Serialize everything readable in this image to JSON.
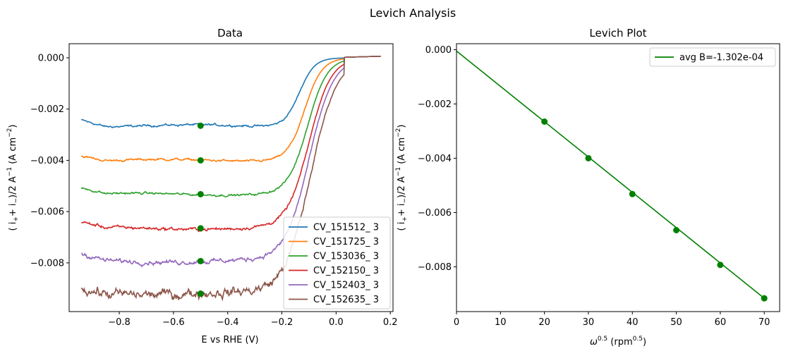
{
  "figure": {
    "suptitle": "Levich Analysis"
  },
  "chart_data": [
    {
      "type": "line",
      "title": "Data",
      "xlabel": "E vs RHE (V)",
      "ylabel_main": "( i",
      "ylabel_plus": "+",
      "ylabel_mid": "+ i",
      "ylabel_minus": "−",
      "ylabel_tail": ")/2 A",
      "ylabel_exp1": "−1",
      "ylabel_units": " (A cm",
      "ylabel_exp2": "−2",
      "ylabel_close": ")",
      "xlim": [
        -0.985,
        0.21
      ],
      "ylim": [
        -0.0099,
        0.00055
      ],
      "xticks": [
        -0.8,
        -0.6,
        -0.4,
        -0.2,
        0.0,
        0.2
      ],
      "xtick_labels": [
        "−0.8",
        "−0.6",
        "−0.4",
        "−0.2",
        "0.0",
        "0.2"
      ],
      "yticks": [
        0.0,
        -0.002,
        -0.004,
        -0.006,
        -0.008
      ],
      "ytick_labels": [
        "0.000",
        "−0.002",
        "−0.004",
        "−0.006",
        "−0.008"
      ],
      "legend_position": "lower-right",
      "curve_x_range": [
        -0.94,
        0.165
      ],
      "half_wave_potential": -0.105,
      "marker_x": -0.5,
      "series": [
        {
          "name": "CV_151512_ 3",
          "color": "#1f77b4",
          "plateau": -0.00265,
          "onset": -0.135,
          "noise": 2e-05
        },
        {
          "name": "CV_151725_ 3",
          "color": "#ff7f0e",
          "plateau": -0.004,
          "onset": -0.115,
          "noise": 2e-05
        },
        {
          "name": "CV_153036_ 3",
          "color": "#2ca02c",
          "plateau": -0.00532,
          "onset": -0.105,
          "noise": 2e-05
        },
        {
          "name": "CV_152150_ 3",
          "color": "#d62728",
          "plateau": -0.00665,
          "onset": -0.1,
          "noise": 3e-05
        },
        {
          "name": "CV_152403_ 3",
          "color": "#9467bd",
          "plateau": -0.00793,
          "onset": -0.1,
          "noise": 4e-05
        },
        {
          "name": "CV_152635_ 3",
          "color": "#8c564b",
          "plateau": -0.0092,
          "onset": -0.095,
          "noise": 9e-05
        }
      ],
      "markers": {
        "color": "#008000",
        "x": -0.5,
        "y": [
          -0.00265,
          -0.004,
          -0.00532,
          -0.00665,
          -0.00793,
          -0.0092
        ]
      }
    },
    {
      "type": "line",
      "title": "Levich Plot",
      "xlabel_symbol": "ω",
      "xlabel_exp": "0.5",
      "xlabel_units": " (rpm",
      "xlabel_units_exp": "0.5",
      "xlabel_close": ")",
      "ylabel_main": "( i",
      "ylabel_plus": "+",
      "ylabel_mid": "+ i",
      "ylabel_minus": "−",
      "ylabel_tail": ")/2 A",
      "ylabel_exp1": "−1",
      "ylabel_units": " (A cm",
      "ylabel_exp2": "−2",
      "ylabel_close": ")",
      "xlim": [
        0,
        73.5
      ],
      "ylim": [
        -0.00965,
        0.00022
      ],
      "xticks": [
        0,
        10,
        20,
        30,
        40,
        50,
        60,
        70
      ],
      "xtick_labels": [
        "0",
        "10",
        "20",
        "30",
        "40",
        "50",
        "60",
        "70"
      ],
      "yticks": [
        0.0,
        -0.002,
        -0.004,
        -0.006,
        -0.008
      ],
      "ytick_labels": [
        "0.000",
        "−0.002",
        "−0.004",
        "−0.006",
        "−0.008"
      ],
      "legend_position": "top-right",
      "series": [
        {
          "name": "avg B=-1.302e-04",
          "color": "#008000",
          "x": [
            0,
            70
          ],
          "y": [
            -5e-05,
            -0.00916
          ]
        }
      ],
      "points": {
        "color": "#008000",
        "x": [
          20,
          30,
          40,
          50,
          60,
          70
        ],
        "y": [
          -0.00265,
          -0.004,
          -0.00532,
          -0.00665,
          -0.00793,
          -0.00916
        ]
      }
    }
  ]
}
